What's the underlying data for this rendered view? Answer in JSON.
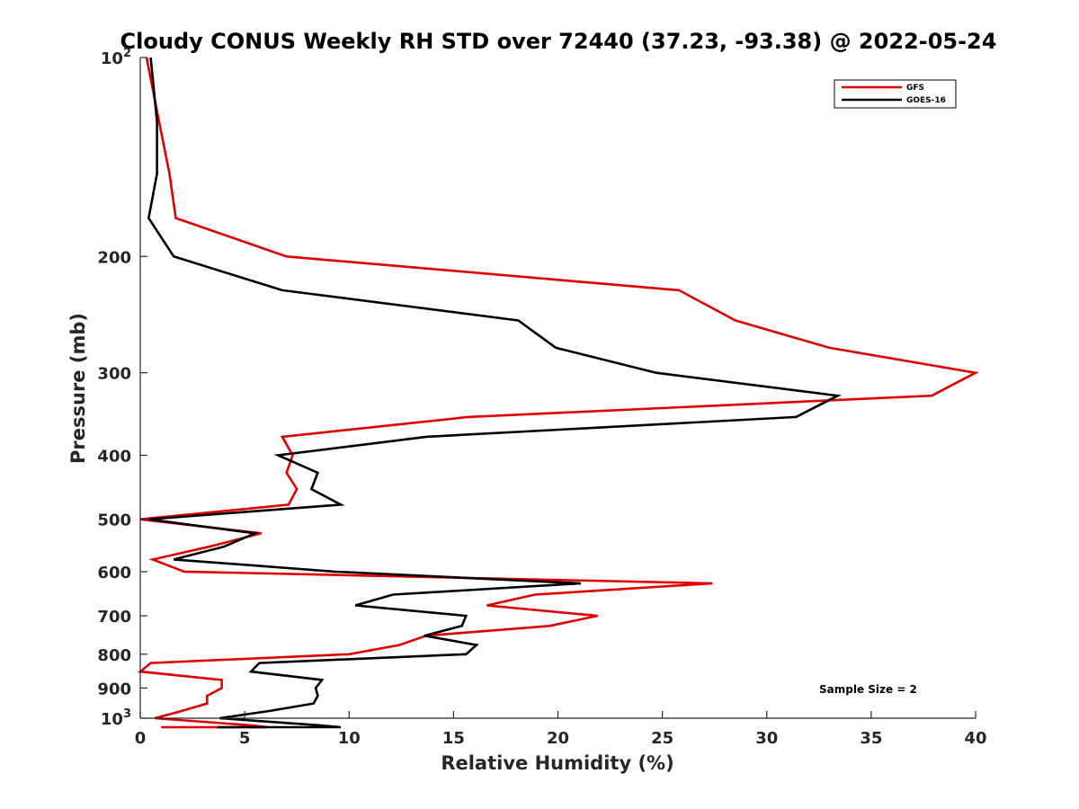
{
  "chart_data": {
    "type": "line",
    "title": "Cloudy CONUS Weekly RH STD over 72440 (37.23, -93.38) @ 2022-05-24",
    "xlabel": "Relative Humidity (%)",
    "ylabel": "Pressure (mb)",
    "xlim": [
      0,
      40
    ],
    "ylim": [
      100,
      1000
    ],
    "y_scale": "log",
    "y_reversed": true,
    "xticks": [
      0,
      5,
      10,
      15,
      20,
      25,
      30,
      35,
      40
    ],
    "xtick_labels": [
      "0",
      "5",
      "10",
      "15",
      "20",
      "25",
      "30",
      "35",
      "40"
    ],
    "yticks": [
      100,
      200,
      300,
      400,
      500,
      600,
      700,
      800,
      900,
      1000
    ],
    "ytick_labels": [
      {
        "base": "10",
        "exp": "2"
      },
      {
        "base": "200",
        "exp": ""
      },
      {
        "base": "300",
        "exp": ""
      },
      {
        "base": "400",
        "exp": ""
      },
      {
        "base": "500",
        "exp": ""
      },
      {
        "base": "600",
        "exp": ""
      },
      {
        "base": "700",
        "exp": ""
      },
      {
        "base": "800",
        "exp": ""
      },
      {
        "base": "900",
        "exp": ""
      },
      {
        "base": "10",
        "exp": "3"
      }
    ],
    "grid": false,
    "legend_position": "top-right",
    "annotation": "Sample Size = 2",
    "series": [
      {
        "name": "GFS",
        "color": "#e00000",
        "points": [
          {
            "p": 100,
            "rh": 0.3
          },
          {
            "p": 125,
            "rh": 0.9
          },
          {
            "p": 150,
            "rh": 1.4
          },
          {
            "p": 175,
            "rh": 1.7
          },
          {
            "p": 200,
            "rh": 7.0
          },
          {
            "p": 225,
            "rh": 25.8
          },
          {
            "p": 250,
            "rh": 28.5
          },
          {
            "p": 275,
            "rh": 33.0
          },
          {
            "p": 300,
            "rh": 40.0
          },
          {
            "p": 325,
            "rh": 37.9
          },
          {
            "p": 350,
            "rh": 15.7
          },
          {
            "p": 375,
            "rh": 6.8
          },
          {
            "p": 400,
            "rh": 7.3
          },
          {
            "p": 425,
            "rh": 7.0
          },
          {
            "p": 450,
            "rh": 7.5
          },
          {
            "p": 475,
            "rh": 7.1
          },
          {
            "p": 500,
            "rh": 0.0
          },
          {
            "p": 525,
            "rh": 5.8
          },
          {
            "p": 550,
            "rh": 3.3
          },
          {
            "p": 575,
            "rh": 0.6
          },
          {
            "p": 600,
            "rh": 2.1
          },
          {
            "p": 625,
            "rh": 27.4
          },
          {
            "p": 650,
            "rh": 18.9
          },
          {
            "p": 675,
            "rh": 16.6
          },
          {
            "p": 700,
            "rh": 21.9
          },
          {
            "p": 725,
            "rh": 19.6
          },
          {
            "p": 750,
            "rh": 13.7
          },
          {
            "p": 775,
            "rh": 12.4
          },
          {
            "p": 800,
            "rh": 10.0
          },
          {
            "p": 825,
            "rh": 0.5
          },
          {
            "p": 850,
            "rh": 0.0
          },
          {
            "p": 875,
            "rh": 3.9
          },
          {
            "p": 900,
            "rh": 3.9
          },
          {
            "p": 925,
            "rh": 3.2
          },
          {
            "p": 950,
            "rh": 3.2
          },
          {
            "p": 975,
            "rh": 2.0
          },
          {
            "p": 1000,
            "rh": 0.7
          },
          {
            "p": 1025,
            "rh": 5.3
          },
          {
            "p": 1050,
            "rh": 6.1
          },
          {
            "p": 1075,
            "rh": 1.0
          }
        ]
      },
      {
        "name": "GOES-16",
        "color": "#000000",
        "points": [
          {
            "p": 100,
            "rh": 0.5
          },
          {
            "p": 125,
            "rh": 0.8
          },
          {
            "p": 150,
            "rh": 0.8
          },
          {
            "p": 175,
            "rh": 0.4
          },
          {
            "p": 200,
            "rh": 1.6
          },
          {
            "p": 225,
            "rh": 6.8
          },
          {
            "p": 250,
            "rh": 18.1
          },
          {
            "p": 275,
            "rh": 19.9
          },
          {
            "p": 300,
            "rh": 24.7
          },
          {
            "p": 325,
            "rh": 33.4
          },
          {
            "p": 350,
            "rh": 31.4
          },
          {
            "p": 375,
            "rh": 13.7
          },
          {
            "p": 400,
            "rh": 6.6
          },
          {
            "p": 425,
            "rh": 8.5
          },
          {
            "p": 450,
            "rh": 8.2
          },
          {
            "p": 475,
            "rh": 9.6
          },
          {
            "p": 500,
            "rh": 0.4
          },
          {
            "p": 525,
            "rh": 5.5
          },
          {
            "p": 550,
            "rh": 4.0
          },
          {
            "p": 575,
            "rh": 1.6
          },
          {
            "p": 600,
            "rh": 9.3
          },
          {
            "p": 625,
            "rh": 21.1
          },
          {
            "p": 650,
            "rh": 12.1
          },
          {
            "p": 675,
            "rh": 10.3
          },
          {
            "p": 700,
            "rh": 15.6
          },
          {
            "p": 725,
            "rh": 15.4
          },
          {
            "p": 750,
            "rh": 13.6
          },
          {
            "p": 775,
            "rh": 16.1
          },
          {
            "p": 800,
            "rh": 15.6
          },
          {
            "p": 825,
            "rh": 5.7
          },
          {
            "p": 850,
            "rh": 5.3
          },
          {
            "p": 875,
            "rh": 8.7
          },
          {
            "p": 900,
            "rh": 8.4
          },
          {
            "p": 925,
            "rh": 8.5
          },
          {
            "p": 950,
            "rh": 8.3
          },
          {
            "p": 975,
            "rh": 6.2
          },
          {
            "p": 1000,
            "rh": 3.8
          },
          {
            "p": 1025,
            "rh": 8.6
          },
          {
            "p": 1050,
            "rh": 9.6
          },
          {
            "p": 1075,
            "rh": 3.7
          }
        ]
      }
    ]
  }
}
